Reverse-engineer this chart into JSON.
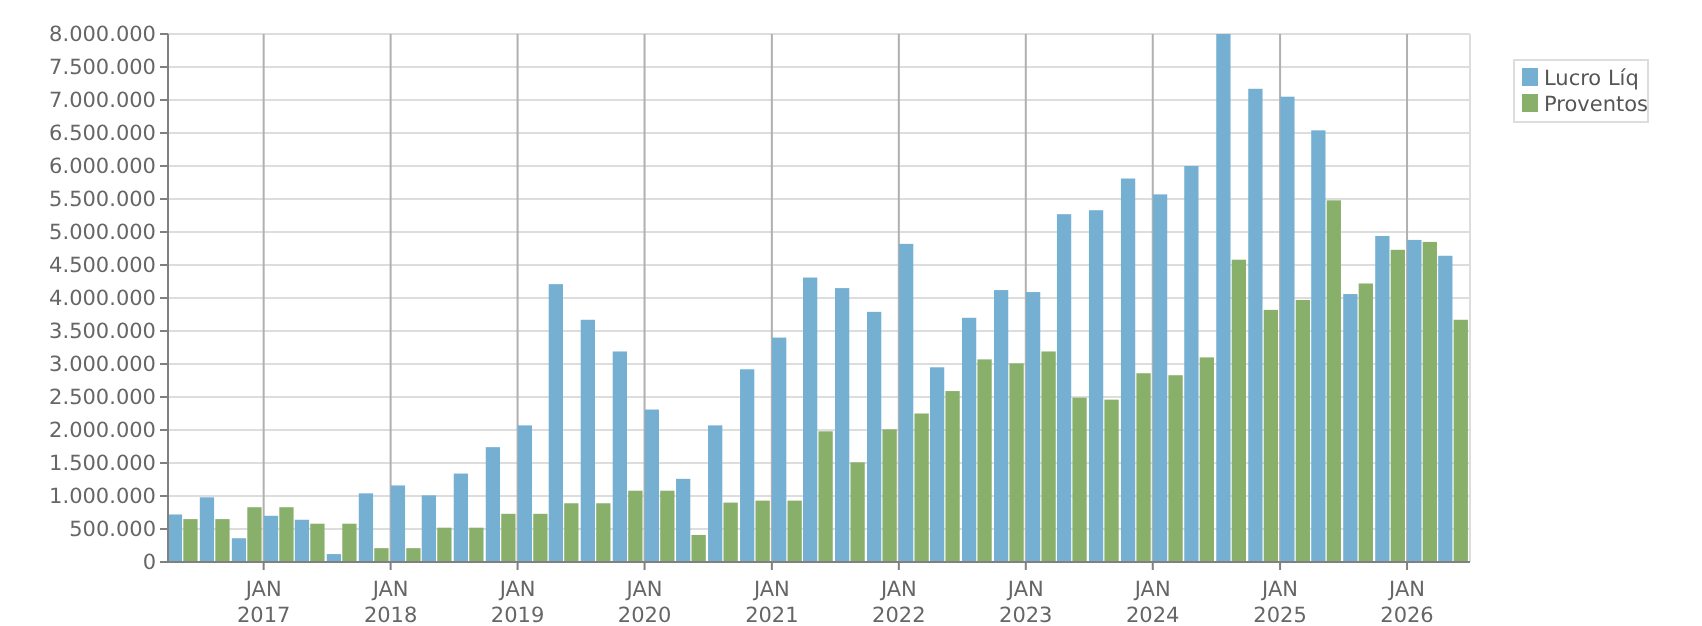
{
  "chart_data": {
    "type": "bar",
    "x": [
      "2016-05-15",
      "2016-08-15",
      "2016-11-15",
      "2017-02-15",
      "2017-05-15",
      "2017-08-15",
      "2017-11-15",
      "2018-02-15",
      "2018-05-15",
      "2018-08-15",
      "2018-11-15",
      "2019-02-15",
      "2019-05-15",
      "2019-08-15",
      "2019-11-15",
      "2020-02-15",
      "2020-05-15",
      "2020-08-15",
      "2020-11-15",
      "2021-02-15",
      "2021-05-15",
      "2021-08-15",
      "2021-11-15",
      "2022-02-15",
      "2022-05-15",
      "2022-08-15",
      "2022-11-15",
      "2023-02-15",
      "2023-05-15",
      "2023-08-15",
      "2023-11-15",
      "2024-02-15",
      "2024-05-15",
      "2024-08-15",
      "2024-11-15",
      "2025-02-15",
      "2025-05-15",
      "2025-08-15",
      "2025-11-15",
      "2026-02-15",
      "2026-05-15"
    ],
    "series": [
      {
        "name": "Lucro Líq",
        "color": "#75b0d3",
        "values": [
          720000,
          980000,
          360000,
          700000,
          640000,
          120000,
          1040000,
          1160000,
          1010000,
          1340000,
          1740000,
          2070000,
          4210000,
          3670000,
          3190000,
          2310000,
          1260000,
          2070000,
          2920000,
          3400000,
          4310000,
          4150000,
          3790000,
          4820000,
          2950000,
          3700000,
          4120000,
          4090000,
          5270000,
          5330000,
          5810000,
          5570000,
          6000000,
          8000000,
          7170000,
          7050000,
          6540000,
          4060000,
          4940000,
          4880000,
          4640000
        ]
      },
      {
        "name": "Proventos",
        "color": "#88b06a",
        "values": [
          650000,
          650000,
          830000,
          830000,
          580000,
          580000,
          210000,
          210000,
          520000,
          520000,
          730000,
          730000,
          890000,
          890000,
          1080000,
          1080000,
          410000,
          900000,
          930000,
          930000,
          1980000,
          1510000,
          2010000,
          2250000,
          2590000,
          3070000,
          3010000,
          3190000,
          2490000,
          2460000,
          2860000,
          2830000,
          3100000,
          4580000,
          3820000,
          3970000,
          5480000,
          4220000,
          4730000,
          4850000,
          3670000
        ]
      }
    ],
    "xlim": [
      "2016-04-01",
      "2026-07-01"
    ],
    "xticks": [
      {
        "value": "2017-01-01",
        "label": "JAN 2017"
      },
      {
        "value": "2018-01-01",
        "label": "JAN 2018"
      },
      {
        "value": "2019-01-01",
        "label": "JAN 2019"
      },
      {
        "value": "2020-01-01",
        "label": "JAN 2020"
      },
      {
        "value": "2021-01-01",
        "label": "JAN 2021"
      },
      {
        "value": "2022-01-01",
        "label": "JAN 2022"
      },
      {
        "value": "2023-01-01",
        "label": "JAN 2023"
      },
      {
        "value": "2024-01-01",
        "label": "JAN 2024"
      },
      {
        "value": "2025-01-01",
        "label": "JAN 2025"
      },
      {
        "value": "2026-01-01",
        "label": "JAN 2026"
      }
    ],
    "ylim": [
      0,
      8000000
    ],
    "yticks": [
      {
        "value": 0,
        "label": "0"
      },
      {
        "value": 500000,
        "label": "500.000"
      },
      {
        "value": 1000000,
        "label": "1.000.000"
      },
      {
        "value": 1500000,
        "label": "1.500.000"
      },
      {
        "value": 2000000,
        "label": "2.000.000"
      },
      {
        "value": 2500000,
        "label": "2.500.000"
      },
      {
        "value": 3000000,
        "label": "3.000.000"
      },
      {
        "value": 3500000,
        "label": "3.500.000"
      },
      {
        "value": 4000000,
        "label": "4.000.000"
      },
      {
        "value": 4500000,
        "label": "4.500.000"
      },
      {
        "value": 5000000,
        "label": "5.000.000"
      },
      {
        "value": 5500000,
        "label": "5.500.000"
      },
      {
        "value": 6000000,
        "label": "6.000.000"
      },
      {
        "value": 6500000,
        "label": "6.500.000"
      },
      {
        "value": 7000000,
        "label": "7.000.000"
      },
      {
        "value": 7500000,
        "label": "7.500.000"
      },
      {
        "value": 8000000,
        "label": "8.000.000"
      }
    ],
    "grid": true,
    "legend": "top right"
  }
}
